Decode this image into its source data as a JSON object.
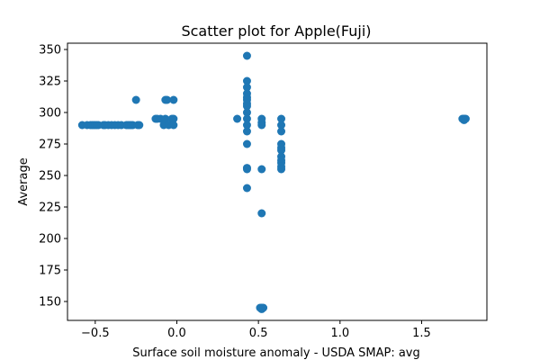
{
  "chart_data": {
    "type": "scatter",
    "title": "Scatter plot for Apple(Fuji)",
    "xlabel": "Surface soil moisture anomaly  - USDA SMAP: avg",
    "ylabel": "Average",
    "xlim": [
      -0.67,
      1.9
    ],
    "ylim": [
      135,
      355
    ],
    "xticks": [
      -0.5,
      0.0,
      0.5,
      1.0,
      1.5
    ],
    "xtick_labels": [
      "−0.5",
      "0.0",
      "0.5",
      "1.0",
      "1.5"
    ],
    "yticks": [
      150,
      175,
      200,
      225,
      250,
      275,
      300,
      325,
      350
    ],
    "ytick_labels": [
      "150",
      "175",
      "200",
      "225",
      "250",
      "275",
      "300",
      "325",
      "350"
    ],
    "grid": false,
    "marker_color": "#1f77b4",
    "points": [
      [
        -0.58,
        290
      ],
      [
        -0.55,
        290
      ],
      [
        -0.53,
        290
      ],
      [
        -0.52,
        290
      ],
      [
        -0.51,
        290
      ],
      [
        -0.5,
        290
      ],
      [
        -0.49,
        290
      ],
      [
        -0.48,
        290
      ],
      [
        -0.45,
        290
      ],
      [
        -0.44,
        290
      ],
      [
        -0.42,
        290
      ],
      [
        -0.4,
        290
      ],
      [
        -0.38,
        290
      ],
      [
        -0.36,
        290
      ],
      [
        -0.34,
        290
      ],
      [
        -0.31,
        290
      ],
      [
        -0.3,
        290
      ],
      [
        -0.29,
        290
      ],
      [
        -0.28,
        290
      ],
      [
        -0.27,
        290
      ],
      [
        -0.25,
        310
      ],
      [
        -0.24,
        290
      ],
      [
        -0.23,
        290
      ],
      [
        -0.13,
        295
      ],
      [
        -0.12,
        295
      ],
      [
        -0.1,
        295
      ],
      [
        -0.08,
        290
      ],
      [
        -0.07,
        310
      ],
      [
        -0.07,
        295
      ],
      [
        -0.06,
        310
      ],
      [
        -0.05,
        290
      ],
      [
        -0.03,
        295
      ],
      [
        -0.02,
        310
      ],
      [
        -0.02,
        295
      ],
      [
        -0.02,
        290
      ],
      [
        0.37,
        295
      ],
      [
        0.43,
        345
      ],
      [
        0.43,
        325
      ],
      [
        0.43,
        320
      ],
      [
        0.43,
        315
      ],
      [
        0.43,
        312
      ],
      [
        0.43,
        310
      ],
      [
        0.43,
        307
      ],
      [
        0.43,
        305
      ],
      [
        0.43,
        300
      ],
      [
        0.43,
        295
      ],
      [
        0.43,
        290
      ],
      [
        0.43,
        285
      ],
      [
        0.43,
        275
      ],
      [
        0.43,
        256
      ],
      [
        0.43,
        255
      ],
      [
        0.43,
        240
      ],
      [
        0.52,
        295
      ],
      [
        0.52,
        292
      ],
      [
        0.52,
        290
      ],
      [
        0.52,
        255
      ],
      [
        0.52,
        220
      ],
      [
        0.52,
        145
      ],
      [
        0.52,
        145
      ],
      [
        0.52,
        144
      ],
      [
        0.51,
        145
      ],
      [
        0.53,
        145
      ],
      [
        0.64,
        295
      ],
      [
        0.64,
        290
      ],
      [
        0.64,
        285
      ],
      [
        0.64,
        275
      ],
      [
        0.64,
        272
      ],
      [
        0.64,
        270
      ],
      [
        0.64,
        265
      ],
      [
        0.64,
        262
      ],
      [
        0.64,
        260
      ],
      [
        0.64,
        257
      ],
      [
        0.64,
        255
      ],
      [
        1.76,
        295
      ],
      [
        1.76,
        295
      ],
      [
        1.76,
        294
      ],
      [
        1.77,
        295
      ],
      [
        1.75,
        295
      ]
    ]
  }
}
